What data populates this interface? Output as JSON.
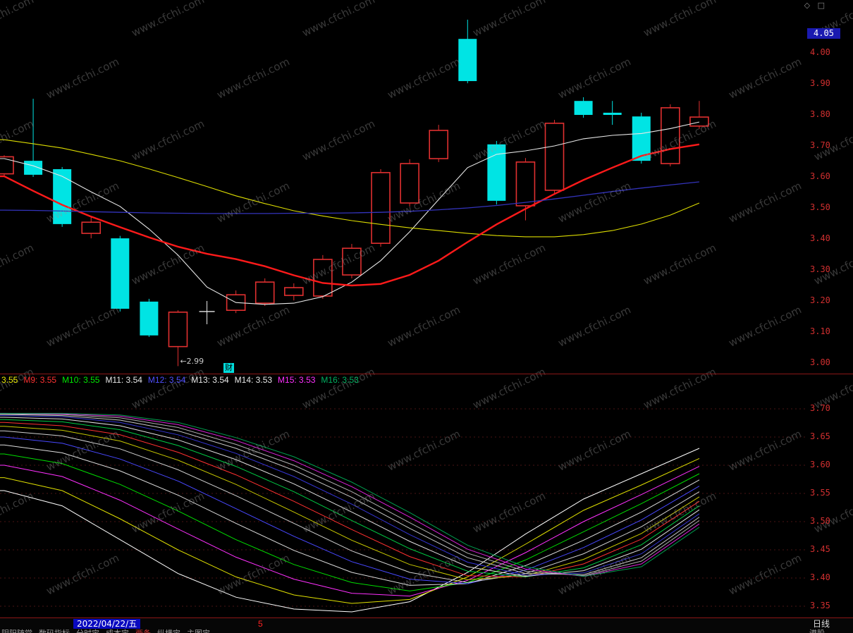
{
  "window": {
    "icon_diamond": "◇",
    "icon_window": "□"
  },
  "watermark": {
    "text": "www.cfchi.com"
  },
  "axis": {
    "price_tag": "4.05"
  },
  "main_marker": {
    "label": "财"
  },
  "indicator_header": {
    "segments": [
      {
        "label": "3.55",
        "color": "#e8e800"
      },
      {
        "label": "M9: 3.55",
        "color": "#ff3232"
      },
      {
        "label": "M10: 3.55",
        "color": "#00e800"
      },
      {
        "label": "M11: 3.54",
        "color": "#e8e8e8"
      },
      {
        "label": "M12: 3.54",
        "color": "#5050ff"
      },
      {
        "label": "M13: 3.54",
        "color": "#e8e8e8"
      },
      {
        "label": "M14: 3.53",
        "color": "#e8e8e8"
      },
      {
        "label": "M15: 3.53",
        "color": "#ff30ff"
      },
      {
        "label": "M16: 3.53",
        "color": "#00b060"
      }
    ]
  },
  "bottom_bar": {
    "date": "2022/04/22/五",
    "count": "5",
    "period": "日线",
    "toolbar_items": [
      {
        "label": "阴阳随堂",
        "color": "#9a9a9a"
      },
      {
        "label": "数码指标",
        "color": "#9a9a9a"
      },
      {
        "label": "分时宝",
        "color": "#9a9a9a"
      },
      {
        "label": "成本宝",
        "color": "#9a9a9a"
      },
      {
        "label": "两条",
        "color": "#cc3333"
      },
      {
        "label": "纵横宝",
        "color": "#9a9a9a"
      },
      {
        "label": "主图宝",
        "color": "#9a9a9a"
      }
    ],
    "toolbar_right": "港股"
  },
  "chart_data": [
    {
      "type": "candlestick",
      "title": "",
      "ylim": [
        2.97,
        4.12
      ],
      "y_ticks": [
        4.0,
        3.9,
        3.8,
        3.7,
        3.6,
        3.5,
        3.4,
        3.3,
        3.2,
        3.1,
        3.0
      ],
      "last_price_tag": "4.05",
      "palette": {
        "up": "#e03030",
        "down": "#00e4e4",
        "doji": "#e8e8e8"
      },
      "annotation": {
        "text": "←2.99",
        "candle_index": 6,
        "price": 3.005
      },
      "candles": [
        {
          "o": 3.61,
          "h": 3.67,
          "l": 3.6,
          "c": 3.665,
          "dir": "up"
        },
        {
          "o": 3.652,
          "h": 3.852,
          "l": 3.6,
          "c": 3.607,
          "dir": "down"
        },
        {
          "o": 3.625,
          "h": 3.632,
          "l": 3.439,
          "c": 3.448,
          "dir": "down"
        },
        {
          "o": 3.418,
          "h": 3.47,
          "l": 3.402,
          "c": 3.454,
          "dir": "up"
        },
        {
          "o": 3.402,
          "h": 3.41,
          "l": 3.166,
          "c": 3.175,
          "dir": "down"
        },
        {
          "o": 3.198,
          "h": 3.207,
          "l": 3.084,
          "c": 3.089,
          "dir": "down"
        },
        {
          "o": 3.053,
          "h": 3.17,
          "l": 2.99,
          "c": 3.164,
          "dir": "up"
        },
        {
          "o": 3.16,
          "h": 3.2,
          "l": 3.125,
          "c": 3.166,
          "dir": "doji"
        },
        {
          "o": 3.17,
          "h": 3.234,
          "l": 3.161,
          "c": 3.22,
          "dir": "up"
        },
        {
          "o": 3.193,
          "h": 3.273,
          "l": 3.184,
          "c": 3.261,
          "dir": "up"
        },
        {
          "o": 3.218,
          "h": 3.257,
          "l": 3.202,
          "c": 3.243,
          "dir": "up"
        },
        {
          "o": 3.216,
          "h": 3.348,
          "l": 3.207,
          "c": 3.334,
          "dir": "up"
        },
        {
          "o": 3.284,
          "h": 3.384,
          "l": 3.273,
          "c": 3.37,
          "dir": "up"
        },
        {
          "o": 3.386,
          "h": 3.625,
          "l": 3.375,
          "c": 3.614,
          "dir": "up"
        },
        {
          "o": 3.516,
          "h": 3.657,
          "l": 3.505,
          "c": 3.643,
          "dir": "up"
        },
        {
          "o": 3.659,
          "h": 3.768,
          "l": 3.648,
          "c": 3.75,
          "dir": "up"
        },
        {
          "o": 4.045,
          "h": 4.107,
          "l": 3.902,
          "c": 3.909,
          "dir": "down"
        },
        {
          "o": 3.705,
          "h": 3.716,
          "l": 3.511,
          "c": 3.523,
          "dir": "down"
        },
        {
          "o": 3.507,
          "h": 3.661,
          "l": 3.46,
          "c": 3.648,
          "dir": "up"
        },
        {
          "o": 3.557,
          "h": 3.784,
          "l": 3.545,
          "c": 3.773,
          "dir": "up"
        },
        {
          "o": 3.845,
          "h": 3.857,
          "l": 3.791,
          "c": 3.8,
          "dir": "down"
        },
        {
          "o": 3.807,
          "h": 3.845,
          "l": 3.768,
          "c": 3.8,
          "dir": "down"
        },
        {
          "o": 3.795,
          "h": 3.807,
          "l": 3.643,
          "c": 3.652,
          "dir": "down"
        },
        {
          "o": 3.643,
          "h": 3.834,
          "l": 3.634,
          "c": 3.823,
          "dir": "up"
        },
        {
          "o": 3.764,
          "h": 3.845,
          "l": 3.755,
          "c": 3.793,
          "dir": "up"
        }
      ],
      "ma_series": [
        {
          "name": "ma-white",
          "color": "#e8e8e8",
          "width": 1.1,
          "values": [
            3.659,
            3.636,
            3.602,
            3.552,
            3.505,
            3.432,
            3.348,
            3.245,
            3.195,
            3.189,
            3.193,
            3.214,
            3.261,
            3.33,
            3.423,
            3.527,
            3.63,
            3.673,
            3.684,
            3.7,
            3.723,
            3.734,
            3.74,
            3.756,
            3.777
          ]
        },
        {
          "name": "ma-yellow",
          "color": "#dcdc00",
          "width": 1.1,
          "values": [
            3.72,
            3.707,
            3.693,
            3.673,
            3.652,
            3.626,
            3.598,
            3.569,
            3.539,
            3.514,
            3.491,
            3.474,
            3.459,
            3.447,
            3.436,
            3.427,
            3.418,
            3.411,
            3.407,
            3.407,
            3.414,
            3.427,
            3.448,
            3.477,
            3.516
          ]
        },
        {
          "name": "ma-red",
          "color": "#ff1a1a",
          "width": 2.4,
          "values": [
            3.602,
            3.555,
            3.51,
            3.472,
            3.438,
            3.405,
            3.375,
            3.352,
            3.335,
            3.312,
            3.283,
            3.258,
            3.25,
            3.255,
            3.284,
            3.33,
            3.39,
            3.447,
            3.497,
            3.545,
            3.59,
            3.63,
            3.668,
            3.69,
            3.705
          ]
        },
        {
          "name": "ma-blue",
          "color": "#3333bb",
          "width": 1.3,
          "values": [
            3.493,
            3.492,
            3.49,
            3.488,
            3.486,
            3.484,
            3.483,
            3.482,
            3.482,
            3.482,
            3.483,
            3.483,
            3.484,
            3.486,
            3.489,
            3.494,
            3.5,
            3.508,
            3.518,
            3.529,
            3.541,
            3.553,
            3.564,
            3.574,
            3.584
          ]
        }
      ]
    },
    {
      "type": "line",
      "title": "",
      "ylim": [
        3.33,
        3.74
      ],
      "y_ticks": [
        3.7,
        3.65,
        3.6,
        3.55,
        3.5,
        3.45,
        3.4,
        3.35
      ],
      "grid": "dotted",
      "series": [
        {
          "name": "M1",
          "color": "#ffffff",
          "values": [
            3.555,
            3.528,
            3.468,
            3.408,
            3.366,
            3.345,
            3.34,
            3.358,
            3.41,
            3.478,
            3.54,
            3.585,
            3.63
          ]
        },
        {
          "name": "M2",
          "color": "#e0e000",
          "values": [
            3.578,
            3.555,
            3.505,
            3.45,
            3.402,
            3.37,
            3.355,
            3.362,
            3.402,
            3.46,
            3.52,
            3.565,
            3.612
          ]
        },
        {
          "name": "M3",
          "color": "#ff30ff",
          "values": [
            3.6,
            3.58,
            3.538,
            3.487,
            3.437,
            3.398,
            3.373,
            3.368,
            3.396,
            3.445,
            3.5,
            3.548,
            3.598
          ]
        },
        {
          "name": "M4",
          "color": "#00dd00",
          "values": [
            3.62,
            3.603,
            3.566,
            3.519,
            3.468,
            3.424,
            3.392,
            3.377,
            3.392,
            3.432,
            3.482,
            3.532,
            3.585
          ]
        },
        {
          "name": "M5",
          "color": "#dddddd",
          "values": [
            3.636,
            3.622,
            3.59,
            3.547,
            3.497,
            3.449,
            3.41,
            3.387,
            3.39,
            3.422,
            3.467,
            3.517,
            3.574
          ]
        },
        {
          "name": "M6",
          "color": "#4848ff",
          "values": [
            3.65,
            3.639,
            3.611,
            3.572,
            3.523,
            3.474,
            3.429,
            3.398,
            3.39,
            3.414,
            3.454,
            3.503,
            3.563
          ]
        },
        {
          "name": "M7",
          "color": "#cfcfcf",
          "values": [
            3.661,
            3.652,
            3.629,
            3.592,
            3.546,
            3.497,
            3.448,
            3.41,
            3.392,
            3.408,
            3.443,
            3.491,
            3.553
          ]
        },
        {
          "name": "M8",
          "color": "#c8c800",
          "values": [
            3.669,
            3.662,
            3.643,
            3.609,
            3.566,
            3.517,
            3.467,
            3.424,
            3.397,
            3.404,
            3.433,
            3.479,
            3.544
          ]
        },
        {
          "name": "M9",
          "color": "#ff3030",
          "values": [
            3.676,
            3.67,
            3.654,
            3.623,
            3.583,
            3.536,
            3.486,
            3.438,
            3.404,
            3.402,
            3.425,
            3.469,
            3.536
          ]
        },
        {
          "name": "M10",
          "color": "#00cc44",
          "values": [
            3.681,
            3.677,
            3.663,
            3.635,
            3.598,
            3.553,
            3.502,
            3.452,
            3.412,
            3.402,
            3.418,
            3.459,
            3.528
          ]
        },
        {
          "name": "M11",
          "color": "#e0e0e0",
          "values": [
            3.685,
            3.682,
            3.67,
            3.645,
            3.61,
            3.567,
            3.517,
            3.465,
            3.42,
            3.403,
            3.413,
            3.451,
            3.521
          ]
        },
        {
          "name": "M12",
          "color": "#3535d5",
          "values": [
            3.688,
            3.686,
            3.676,
            3.654,
            3.621,
            3.58,
            3.531,
            3.477,
            3.428,
            3.405,
            3.409,
            3.443,
            3.514
          ]
        },
        {
          "name": "M13",
          "color": "#c8c8c8",
          "values": [
            3.69,
            3.688,
            3.68,
            3.661,
            3.63,
            3.591,
            3.543,
            3.488,
            3.436,
            3.408,
            3.406,
            3.436,
            3.508
          ]
        },
        {
          "name": "M14",
          "color": "#b0b0b0",
          "values": [
            3.691,
            3.69,
            3.684,
            3.667,
            3.637,
            3.6,
            3.553,
            3.498,
            3.444,
            3.412,
            3.404,
            3.43,
            3.502
          ]
        },
        {
          "name": "M15",
          "color": "#dd22dd",
          "values": [
            3.692,
            3.691,
            3.687,
            3.672,
            3.644,
            3.608,
            3.562,
            3.508,
            3.451,
            3.416,
            3.403,
            3.425,
            3.496
          ]
        },
        {
          "name": "M16",
          "color": "#00a050",
          "values": [
            3.692,
            3.692,
            3.689,
            3.676,
            3.649,
            3.615,
            3.57,
            3.516,
            3.458,
            3.42,
            3.403,
            3.42,
            3.49
          ]
        }
      ]
    }
  ]
}
